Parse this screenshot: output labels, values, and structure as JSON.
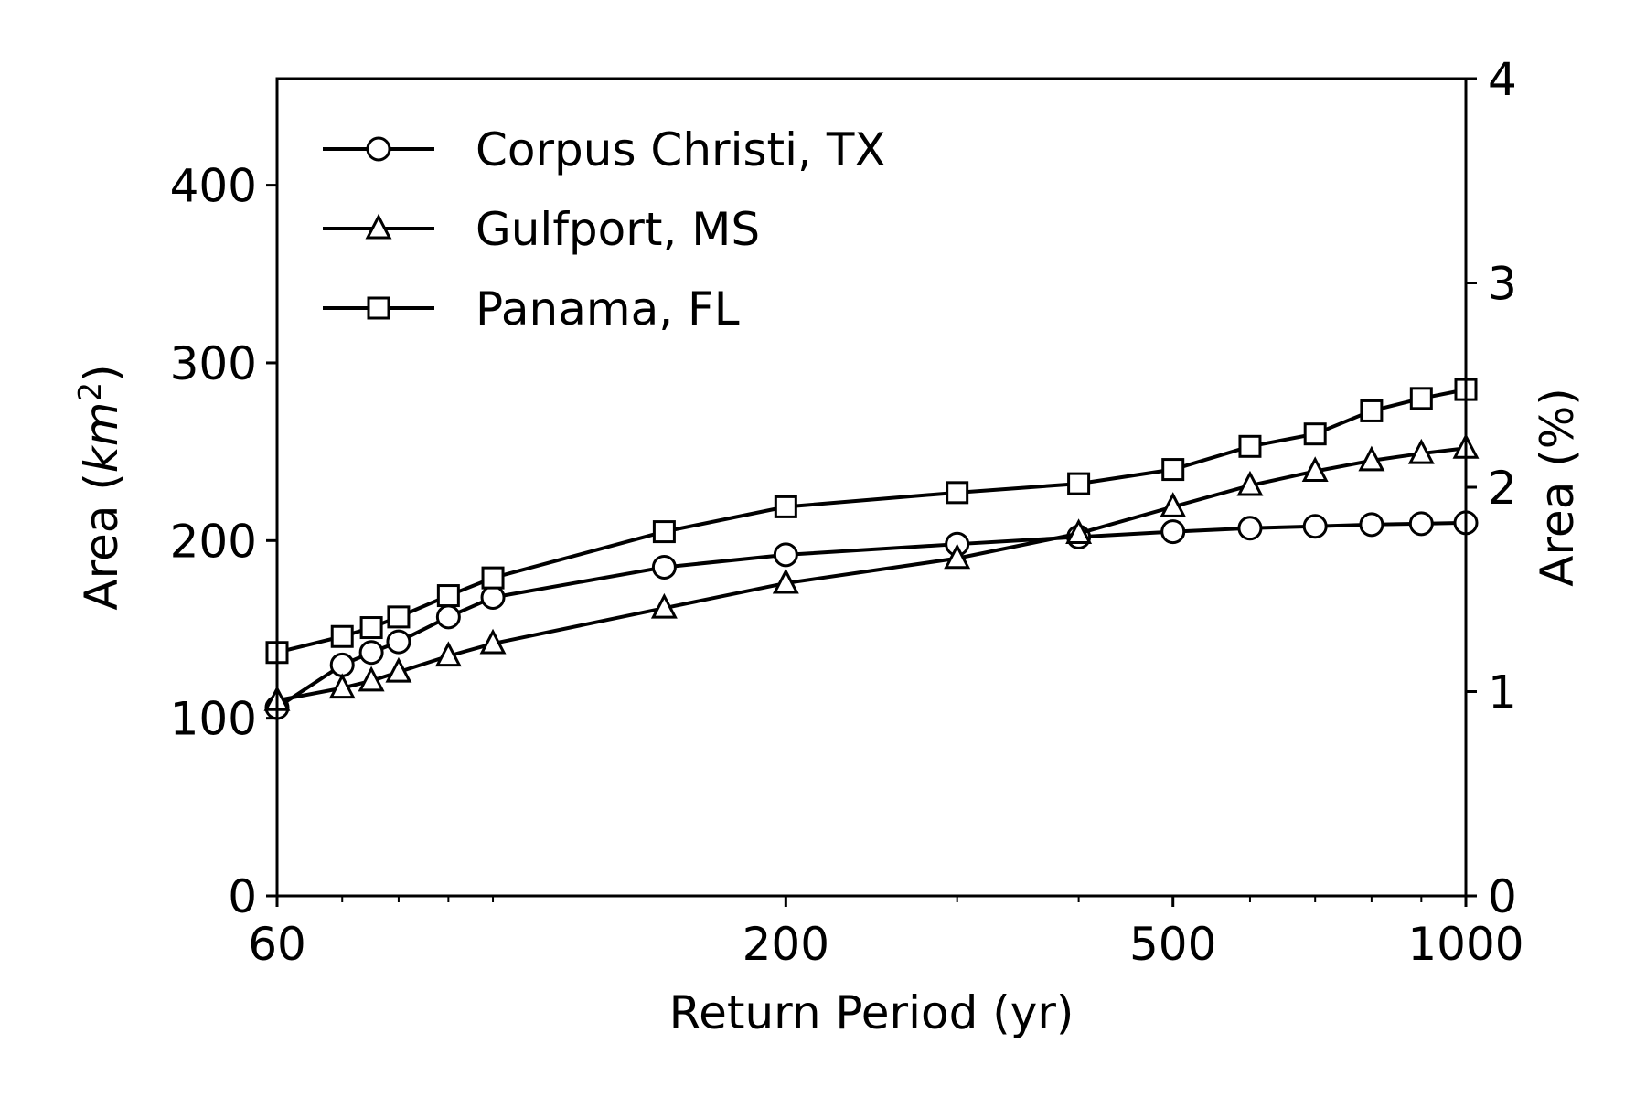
{
  "chart_data": {
    "type": "line",
    "x_scale": "log",
    "xlabel": "Return Period (yr)",
    "ylabel": "Area (km²)",
    "ylabel_parts": {
      "prefix": "Area (",
      "italic": "km",
      "sup": "2",
      "suffix": ")"
    },
    "y2label": "Area (%)",
    "xlim": [
      60,
      1000
    ],
    "ylim": [
      0,
      460
    ],
    "y2lim": [
      0,
      4
    ],
    "x_ticks": [
      60,
      200,
      500,
      1000
    ],
    "x_tick_labels": [
      "60",
      "200",
      "500",
      "1000"
    ],
    "x_minor_ticks": [
      70,
      80,
      90,
      100,
      300,
      400,
      600,
      700,
      800,
      900
    ],
    "y_ticks": [
      0,
      100,
      200,
      300,
      400
    ],
    "y_tick_labels": [
      "0",
      "100",
      "200",
      "300",
      "400"
    ],
    "y2_ticks": [
      0,
      1,
      2,
      3,
      4
    ],
    "y2_tick_labels": [
      "0",
      "1",
      "2",
      "3",
      "4"
    ],
    "grid": false,
    "legend_position": "top-left",
    "x": [
      60,
      70,
      75,
      80,
      90,
      100,
      150,
      200,
      300,
      400,
      500,
      600,
      700,
      800,
      900,
      1000
    ],
    "series": [
      {
        "name": "Corpus Christi, TX",
        "marker": "circle",
        "values": [
          106,
          130,
          137,
          143,
          157,
          168,
          185,
          192,
          198,
          202,
          205,
          207,
          208,
          209,
          209.5,
          210
        ]
      },
      {
        "name": "Gulfport, MS",
        "marker": "triangle",
        "values": [
          110,
          117,
          121,
          126,
          135,
          142,
          162,
          176,
          190,
          204,
          219,
          231,
          239,
          245,
          249,
          252
        ]
      },
      {
        "name": "Panama, FL",
        "marker": "square",
        "values": [
          137,
          146,
          151,
          157,
          169,
          179,
          205,
          219,
          227,
          232,
          240,
          253,
          260,
          273,
          280,
          285
        ]
      }
    ]
  }
}
